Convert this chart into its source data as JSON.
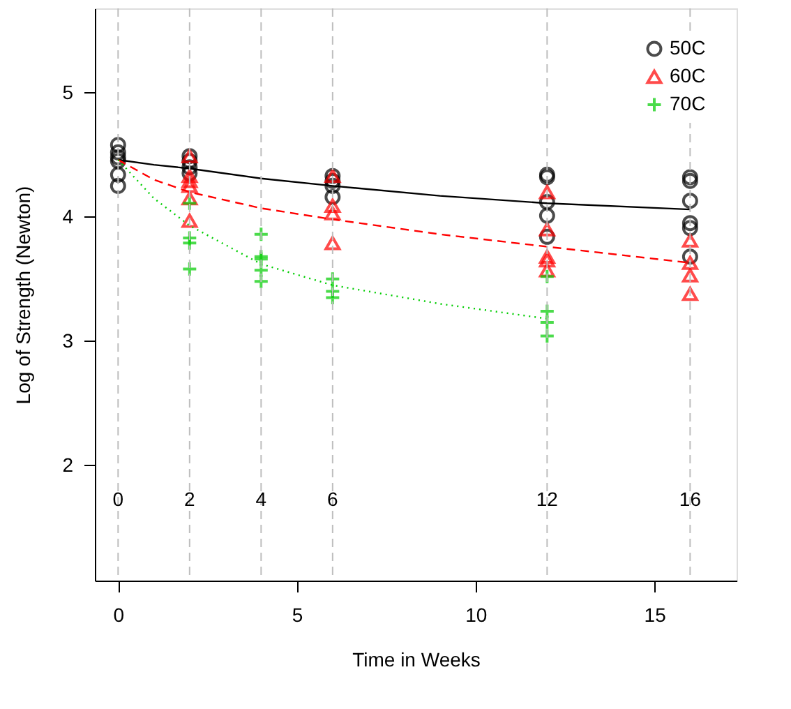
{
  "chart_data": {
    "type": "scatter",
    "xlabel": "Time in Weeks",
    "ylabel": "Log of Strength (Newton)",
    "xlim": [
      -0.65,
      17.3
    ],
    "ylim": [
      1.07,
      5.68
    ],
    "xticks": [
      0,
      5,
      10,
      15
    ],
    "yticks": [
      2,
      3,
      4,
      5
    ],
    "grid": false,
    "legend": "top right",
    "ref_lines": [
      {
        "axis": "x",
        "value": 0,
        "label": "0",
        "color": "#bebebe",
        "line_style": "dashed"
      },
      {
        "axis": "x",
        "value": 2,
        "label": "2",
        "color": "#bebebe",
        "line_style": "dashed"
      },
      {
        "axis": "x",
        "value": 4,
        "label": "4",
        "color": "#bebebe",
        "line_style": "dashed"
      },
      {
        "axis": "x",
        "value": 6,
        "label": "6",
        "color": "#bebebe",
        "line_style": "dashed"
      },
      {
        "axis": "x",
        "value": 12,
        "label": "12",
        "color": "#bebebe",
        "line_style": "dashed"
      },
      {
        "axis": "x",
        "value": 16,
        "label": "16",
        "color": "#bebebe",
        "line_style": "dashed"
      }
    ],
    "series": [
      {
        "name": "50C",
        "color": "#000000",
        "marker": "circle",
        "x": [
          0,
          0,
          0,
          0,
          0,
          0,
          2,
          2,
          2,
          2,
          6,
          6,
          6,
          6,
          12,
          12,
          12,
          12,
          12,
          16,
          16,
          16,
          16,
          16,
          16
        ],
        "values": [
          4.58,
          4.52,
          4.48,
          4.45,
          4.34,
          4.25,
          4.49,
          4.45,
          4.4,
          4.35,
          4.33,
          4.29,
          4.25,
          4.16,
          4.34,
          4.32,
          4.12,
          4.01,
          3.84,
          4.32,
          4.29,
          4.13,
          3.95,
          3.91,
          3.68
        ]
      },
      {
        "name": "60C",
        "color": "#ff0000",
        "marker": "triangle",
        "x": [
          2,
          2,
          2,
          2,
          2,
          2,
          6,
          6,
          6,
          6,
          12,
          12,
          12,
          12,
          12,
          16,
          16,
          16,
          16
        ],
        "values": [
          4.49,
          4.33,
          4.29,
          4.25,
          4.15,
          3.97,
          4.33,
          4.09,
          4.03,
          3.79,
          4.2,
          3.9,
          3.68,
          3.65,
          3.57,
          3.81,
          3.63,
          3.53,
          3.38
        ]
      },
      {
        "name": "70C",
        "color": "#00cd00",
        "marker": "cross",
        "x": [
          2,
          2,
          2,
          2,
          4,
          4,
          4,
          4,
          4,
          6,
          6,
          6,
          12,
          12,
          12,
          12
        ],
        "values": [
          4.11,
          3.83,
          3.79,
          3.58,
          3.86,
          3.68,
          3.66,
          3.57,
          3.48,
          3.5,
          3.4,
          3.35,
          3.52,
          3.24,
          3.15,
          3.04
        ]
      },
      {
        "type": "line",
        "color": "#000000",
        "line_style": "solid",
        "x": [
          0,
          1,
          2,
          4,
          6,
          9,
          12,
          16
        ],
        "values": [
          4.46,
          4.42,
          4.39,
          4.31,
          4.25,
          4.17,
          4.11,
          4.06
        ]
      },
      {
        "type": "line",
        "color": "#ff0000",
        "line_style": "dashed",
        "x": [
          0,
          1,
          2,
          4,
          6,
          9,
          12,
          16
        ],
        "values": [
          4.46,
          4.3,
          4.2,
          4.07,
          3.98,
          3.86,
          3.76,
          3.63
        ]
      },
      {
        "type": "line",
        "color": "#00cd00",
        "line_style": "dotted",
        "x": [
          0,
          1,
          2,
          4,
          6,
          9,
          12
        ],
        "values": [
          4.46,
          4.15,
          3.93,
          3.62,
          3.45,
          3.3,
          3.18
        ]
      }
    ]
  }
}
